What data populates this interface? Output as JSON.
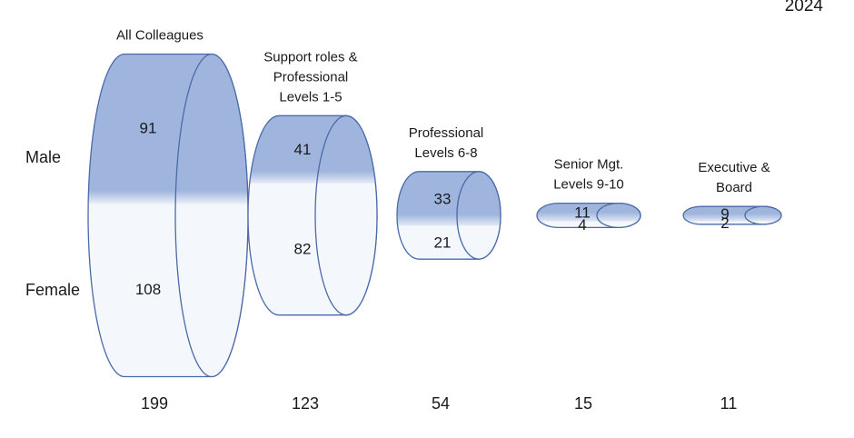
{
  "year": "2024",
  "rows": {
    "male": "Male",
    "female": "Female"
  },
  "colors": {
    "outline": "#4a6aa8",
    "male_top": "#9fb5dd",
    "male_bottom": "#dde6f4",
    "female": "#f4f7fc"
  },
  "chart_data": {
    "type": "bar",
    "categories": [
      "All Colleagues",
      "Support roles & Professional Levels 1-5",
      "Professional Levels 6-8",
      "Senior Mgt. Levels 9-10",
      "Executive & Board"
    ],
    "category_lines": [
      [
        "All Colleagues"
      ],
      [
        "Support roles &",
        "Professional",
        "Levels 1-5"
      ],
      [
        "Professional",
        "Levels 6-8"
      ],
      [
        "Senior Mgt.",
        "Levels 9-10"
      ],
      [
        "Executive &",
        "Board"
      ]
    ],
    "series": [
      {
        "name": "Male",
        "values": [
          91,
          41,
          33,
          11,
          9
        ]
      },
      {
        "name": "Female",
        "values": [
          108,
          82,
          21,
          4,
          2
        ]
      }
    ],
    "totals": [
      199,
      123,
      54,
      15,
      11
    ]
  }
}
